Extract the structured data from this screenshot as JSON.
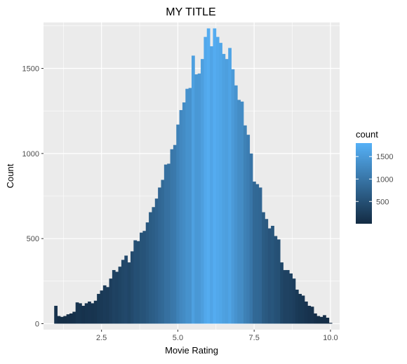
{
  "chart_data": {
    "type": "bar",
    "title": "MY TITLE",
    "xlabel": "Movie Rating",
    "ylabel": "Count",
    "xlim": [
      0.6,
      10.3
    ],
    "ylim": [
      -35,
      1770
    ],
    "x_ticks": [
      2.5,
      5.0,
      7.5,
      10.0
    ],
    "x_tick_labels": [
      "2.5",
      "5.0",
      "7.5",
      "10.0"
    ],
    "y_ticks": [
      0,
      500,
      1000,
      1500
    ],
    "y_tick_labels": [
      "0",
      "500",
      "1000",
      "1500"
    ],
    "grid": true,
    "background": "#EBEBEB",
    "bin_width": 0.1,
    "x": [
      1.0,
      1.1,
      1.2,
      1.3,
      1.4,
      1.5,
      1.6,
      1.7,
      1.8,
      1.9,
      2.0,
      2.1,
      2.2,
      2.3,
      2.4,
      2.5,
      2.6,
      2.7,
      2.8,
      2.9,
      3.0,
      3.1,
      3.2,
      3.3,
      3.4,
      3.5,
      3.6,
      3.7,
      3.8,
      3.9,
      4.0,
      4.1,
      4.2,
      4.3,
      4.4,
      4.5,
      4.6,
      4.7,
      4.8,
      4.9,
      5.0,
      5.1,
      5.2,
      5.3,
      5.4,
      5.5,
      5.6,
      5.7,
      5.8,
      5.9,
      6.0,
      6.1,
      6.2,
      6.3,
      6.4,
      6.5,
      6.6,
      6.7,
      6.8,
      6.9,
      7.0,
      7.1,
      7.2,
      7.3,
      7.4,
      7.5,
      7.6,
      7.7,
      7.8,
      7.9,
      8.0,
      8.1,
      8.2,
      8.3,
      8.4,
      8.5,
      8.6,
      8.7,
      8.8,
      8.9,
      9.0,
      9.1,
      9.2,
      9.3,
      9.4,
      9.5,
      9.6,
      9.7,
      9.8,
      9.9,
      10.0
    ],
    "values": [
      105,
      45,
      40,
      45,
      55,
      60,
      70,
      125,
      120,
      105,
      120,
      130,
      120,
      135,
      175,
      195,
      225,
      215,
      265,
      315,
      305,
      335,
      375,
      400,
      360,
      425,
      490,
      485,
      535,
      545,
      595,
      655,
      685,
      735,
      800,
      845,
      935,
      940,
      1025,
      1050,
      1170,
      1255,
      1300,
      1380,
      1385,
      1575,
      1465,
      1470,
      1555,
      1685,
      1735,
      1630,
      1735,
      1685,
      1650,
      1585,
      1555,
      1620,
      1495,
      1400,
      1315,
      1305,
      1165,
      1110,
      1000,
      835,
      820,
      800,
      655,
      615,
      560,
      575,
      515,
      495,
      360,
      315,
      315,
      295,
      265,
      200,
      175,
      165,
      130,
      105,
      100,
      60,
      45,
      40,
      50,
      35,
      5
    ],
    "legend": {
      "title": "count",
      "position": "right",
      "ticks": [
        500,
        1000,
        1500
      ],
      "tick_labels": [
        "500",
        "1000",
        "1500"
      ],
      "range": [
        5,
        1800
      ],
      "low_color": "#132B43",
      "high_color": "#56B1F7"
    }
  }
}
